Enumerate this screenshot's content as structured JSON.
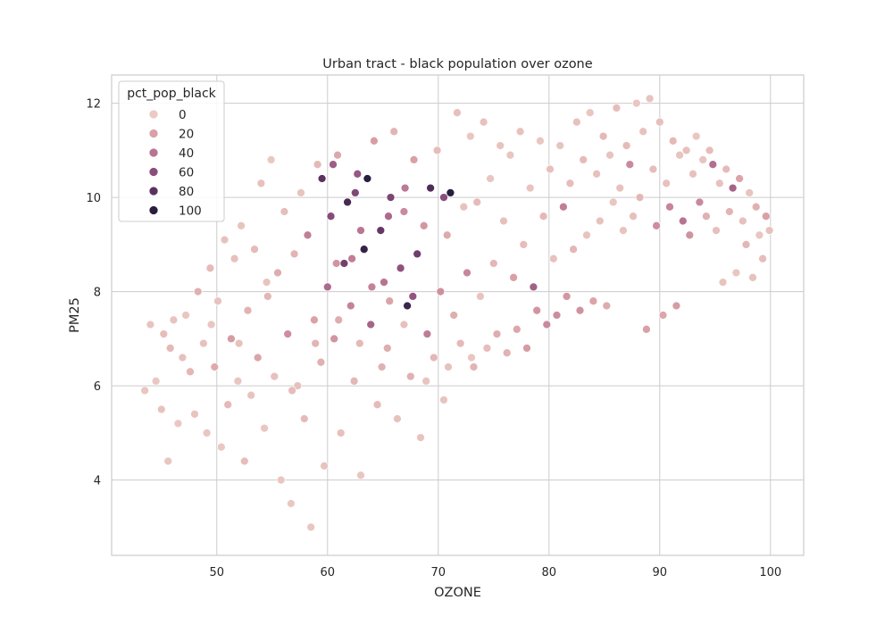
{
  "chart_data": {
    "type": "scatter",
    "title": "Urban tract - black population over ozone",
    "xlabel": "OZONE",
    "ylabel": "PM25",
    "xlim": [
      40.5,
      103
    ],
    "ylim": [
      2.4,
      12.6
    ],
    "xticks": [
      50,
      60,
      70,
      80,
      90,
      100
    ],
    "yticks": [
      4,
      6,
      8,
      10,
      12
    ],
    "grid": true,
    "legend": {
      "title": "pct_pop_black",
      "placement": "top-left",
      "entries": [
        {
          "label": "0",
          "value": 0
        },
        {
          "label": "20",
          "value": 20
        },
        {
          "label": "40",
          "value": 40
        },
        {
          "label": "60",
          "value": 60
        },
        {
          "label": "80",
          "value": 80
        },
        {
          "label": "100",
          "value": 100
        }
      ]
    },
    "colors": {
      "0": "#ebcac3",
      "20": "#d9a0a6",
      "40": "#b97392",
      "60": "#8a4e7c",
      "80": "#5a315f",
      "100": "#2a1d3e",
      "grid": "#cccccc",
      "point_edge": "#ffffff"
    },
    "points": [
      [
        43.5,
        5.9,
        2
      ],
      [
        44.0,
        7.3,
        3
      ],
      [
        44.5,
        6.1,
        1
      ],
      [
        45.0,
        5.5,
        4
      ],
      [
        45.2,
        7.1,
        6
      ],
      [
        45.6,
        4.4,
        2
      ],
      [
        45.8,
        6.8,
        8
      ],
      [
        46.1,
        7.4,
        3
      ],
      [
        46.5,
        5.2,
        1
      ],
      [
        46.9,
        6.6,
        5
      ],
      [
        47.2,
        7.5,
        2
      ],
      [
        47.6,
        6.3,
        9
      ],
      [
        48.0,
        5.4,
        3
      ],
      [
        48.3,
        8.0,
        12
      ],
      [
        48.8,
        6.9,
        4
      ],
      [
        49.1,
        5.0,
        2
      ],
      [
        49.4,
        8.5,
        7
      ],
      [
        49.8,
        6.4,
        15
      ],
      [
        50.1,
        7.8,
        3
      ],
      [
        50.4,
        4.7,
        1
      ],
      [
        50.7,
        9.1,
        4
      ],
      [
        51.0,
        5.6,
        8
      ],
      [
        51.3,
        7.0,
        22
      ],
      [
        51.6,
        8.7,
        5
      ],
      [
        51.9,
        6.1,
        2
      ],
      [
        52.2,
        9.4,
        3
      ],
      [
        52.5,
        4.4,
        6
      ],
      [
        52.8,
        7.6,
        11
      ],
      [
        53.1,
        5.8,
        3
      ],
      [
        53.4,
        8.9,
        7
      ],
      [
        53.7,
        6.6,
        18
      ],
      [
        54.0,
        10.3,
        4
      ],
      [
        54.3,
        5.1,
        2
      ],
      [
        54.6,
        7.9,
        9
      ],
      [
        54.9,
        10.8,
        1
      ],
      [
        55.2,
        6.2,
        5
      ],
      [
        55.5,
        8.4,
        14
      ],
      [
        55.8,
        4.0,
        2
      ],
      [
        56.1,
        9.7,
        6
      ],
      [
        56.4,
        7.1,
        28
      ],
      [
        56.7,
        3.5,
        1
      ],
      [
        57.0,
        8.8,
        10
      ],
      [
        57.3,
        6.0,
        4
      ],
      [
        57.6,
        10.1,
        3
      ],
      [
        57.9,
        5.3,
        7
      ],
      [
        58.2,
        9.2,
        35
      ],
      [
        58.5,
        3.0,
        2
      ],
      [
        58.8,
        7.4,
        19
      ],
      [
        59.1,
        10.7,
        8
      ],
      [
        59.4,
        6.5,
        12
      ],
      [
        59.7,
        4.3,
        3
      ],
      [
        60.0,
        8.1,
        45
      ],
      [
        60.3,
        9.6,
        62
      ],
      [
        60.6,
        7.0,
        25
      ],
      [
        60.9,
        10.9,
        16
      ],
      [
        61.2,
        5.0,
        5
      ],
      [
        61.5,
        8.6,
        70
      ],
      [
        61.8,
        9.9,
        88
      ],
      [
        62.1,
        7.7,
        33
      ],
      [
        62.4,
        6.1,
        9
      ],
      [
        62.7,
        10.5,
        55
      ],
      [
        63.0,
        4.1,
        2
      ],
      [
        63.3,
        8.9,
        95
      ],
      [
        63.6,
        10.4,
        100
      ],
      [
        63.9,
        7.3,
        48
      ],
      [
        64.2,
        11.2,
        21
      ],
      [
        64.5,
        5.6,
        7
      ],
      [
        64.8,
        9.3,
        76
      ],
      [
        65.1,
        8.2,
        40
      ],
      [
        65.4,
        6.8,
        14
      ],
      [
        65.7,
        10.0,
        66
      ],
      [
        66.0,
        11.4,
        10
      ],
      [
        66.3,
        5.3,
        4
      ],
      [
        66.6,
        8.5,
        58
      ],
      [
        66.9,
        9.7,
        30
      ],
      [
        67.2,
        7.7,
        92
      ],
      [
        67.5,
        6.2,
        12
      ],
      [
        67.8,
        10.8,
        20
      ],
      [
        68.1,
        8.8,
        71
      ],
      [
        68.4,
        4.9,
        3
      ],
      [
        68.7,
        9.4,
        24
      ],
      [
        69.0,
        7.1,
        36
      ],
      [
        69.3,
        10.2,
        85
      ],
      [
        69.6,
        6.6,
        9
      ],
      [
        69.9,
        11.0,
        6
      ],
      [
        70.2,
        8.0,
        27
      ],
      [
        70.5,
        5.7,
        3
      ],
      [
        70.8,
        9.2,
        15
      ],
      [
        71.1,
        10.1,
        100
      ],
      [
        71.4,
        7.5,
        13
      ],
      [
        71.7,
        11.8,
        5
      ],
      [
        72.0,
        6.9,
        8
      ],
      [
        72.3,
        9.8,
        4
      ],
      [
        72.6,
        8.4,
        31
      ],
      [
        72.9,
        11.3,
        2
      ],
      [
        73.2,
        6.4,
        10
      ],
      [
        73.5,
        9.9,
        7
      ],
      [
        73.8,
        7.9,
        3
      ],
      [
        74.1,
        11.6,
        4
      ],
      [
        74.4,
        6.8,
        6
      ],
      [
        74.7,
        10.4,
        2
      ],
      [
        75.0,
        8.6,
        9
      ],
      [
        75.3,
        7.1,
        14
      ],
      [
        75.6,
        11.1,
        3
      ],
      [
        75.9,
        9.5,
        5
      ],
      [
        76.2,
        6.7,
        11
      ],
      [
        76.5,
        10.9,
        2
      ],
      [
        76.8,
        8.3,
        20
      ],
      [
        77.1,
        7.2,
        17
      ],
      [
        77.4,
        11.4,
        4
      ],
      [
        77.7,
        9.0,
        6
      ],
      [
        78.0,
        6.8,
        22
      ],
      [
        78.3,
        10.2,
        3
      ],
      [
        78.6,
        8.1,
        50
      ],
      [
        78.9,
        7.6,
        25
      ],
      [
        79.2,
        11.2,
        2
      ],
      [
        79.5,
        9.6,
        8
      ],
      [
        79.8,
        7.3,
        30
      ],
      [
        80.1,
        10.6,
        5
      ],
      [
        80.4,
        8.7,
        4
      ],
      [
        80.7,
        7.5,
        28
      ],
      [
        81.0,
        11.1,
        3
      ],
      [
        81.3,
        9.8,
        35
      ],
      [
        81.6,
        7.9,
        24
      ],
      [
        81.9,
        10.3,
        6
      ],
      [
        82.2,
        8.9,
        9
      ],
      [
        82.5,
        11.6,
        4
      ],
      [
        82.8,
        7.6,
        26
      ],
      [
        83.1,
        10.8,
        7
      ],
      [
        83.4,
        9.2,
        3
      ],
      [
        83.7,
        11.8,
        2
      ],
      [
        84.0,
        7.8,
        18
      ],
      [
        84.3,
        10.5,
        5
      ],
      [
        84.6,
        9.5,
        4
      ],
      [
        84.9,
        11.3,
        8
      ],
      [
        85.2,
        7.7,
        15
      ],
      [
        85.5,
        10.9,
        3
      ],
      [
        85.8,
        9.9,
        2
      ],
      [
        86.1,
        11.9,
        6
      ],
      [
        86.4,
        10.2,
        4
      ],
      [
        86.7,
        9.3,
        3
      ],
      [
        87.0,
        11.1,
        7
      ],
      [
        87.3,
        10.7,
        30
      ],
      [
        87.6,
        9.6,
        5
      ],
      [
        87.9,
        12.0,
        2
      ],
      [
        88.2,
        10.0,
        9
      ],
      [
        88.5,
        11.4,
        4
      ],
      [
        88.8,
        7.2,
        20
      ],
      [
        89.1,
        12.1,
        3
      ],
      [
        89.4,
        10.6,
        6
      ],
      [
        89.7,
        9.4,
        28
      ],
      [
        90.0,
        11.6,
        5
      ],
      [
        90.3,
        7.5,
        17
      ],
      [
        90.6,
        10.3,
        4
      ],
      [
        90.9,
        9.8,
        32
      ],
      [
        91.2,
        11.2,
        8
      ],
      [
        91.5,
        7.7,
        22
      ],
      [
        91.8,
        10.9,
        3
      ],
      [
        92.1,
        9.5,
        40
      ],
      [
        92.4,
        11.0,
        5
      ],
      [
        92.7,
        9.2,
        26
      ],
      [
        93.0,
        10.5,
        4
      ],
      [
        93.3,
        11.3,
        2
      ],
      [
        93.6,
        9.9,
        30
      ],
      [
        93.9,
        10.8,
        3
      ],
      [
        94.2,
        9.6,
        12
      ],
      [
        94.5,
        11.0,
        6
      ],
      [
        94.8,
        10.7,
        42
      ],
      [
        95.1,
        9.3,
        5
      ],
      [
        95.4,
        10.3,
        4
      ],
      [
        95.7,
        8.2,
        3
      ],
      [
        96.0,
        10.6,
        7
      ],
      [
        96.3,
        9.7,
        10
      ],
      [
        96.6,
        10.2,
        48
      ],
      [
        96.9,
        8.4,
        2
      ],
      [
        97.2,
        10.4,
        18
      ],
      [
        97.5,
        9.5,
        5
      ],
      [
        97.8,
        9.0,
        9
      ],
      [
        98.1,
        10.1,
        3
      ],
      [
        98.4,
        8.3,
        4
      ],
      [
        98.7,
        9.8,
        12
      ],
      [
        99.0,
        9.2,
        2
      ],
      [
        99.3,
        8.7,
        6
      ],
      [
        99.6,
        9.6,
        20
      ],
      [
        99.9,
        9.3,
        4
      ],
      [
        49.5,
        7.3,
        2
      ],
      [
        52.0,
        6.9,
        4
      ],
      [
        54.5,
        8.2,
        3
      ],
      [
        56.8,
        5.9,
        6
      ],
      [
        58.9,
        6.9,
        10
      ],
      [
        61.0,
        7.4,
        14
      ],
      [
        62.9,
        6.9,
        8
      ],
      [
        64.9,
        6.4,
        12
      ],
      [
        66.9,
        7.3,
        5
      ],
      [
        68.9,
        6.1,
        3
      ],
      [
        70.9,
        6.4,
        4
      ],
      [
        73.0,
        6.6,
        2
      ],
      [
        60.5,
        10.7,
        52
      ],
      [
        62.5,
        10.1,
        64
      ],
      [
        63.0,
        9.3,
        39
      ],
      [
        65.5,
        9.6,
        45
      ],
      [
        67.0,
        10.2,
        38
      ],
      [
        70.5,
        10.0,
        60
      ],
      [
        59.5,
        10.4,
        80
      ],
      [
        60.8,
        8.6,
        25
      ],
      [
        62.2,
        8.7,
        35
      ],
      [
        64.0,
        8.1,
        33
      ],
      [
        65.6,
        7.8,
        18
      ],
      [
        67.7,
        7.9,
        56
      ]
    ]
  }
}
